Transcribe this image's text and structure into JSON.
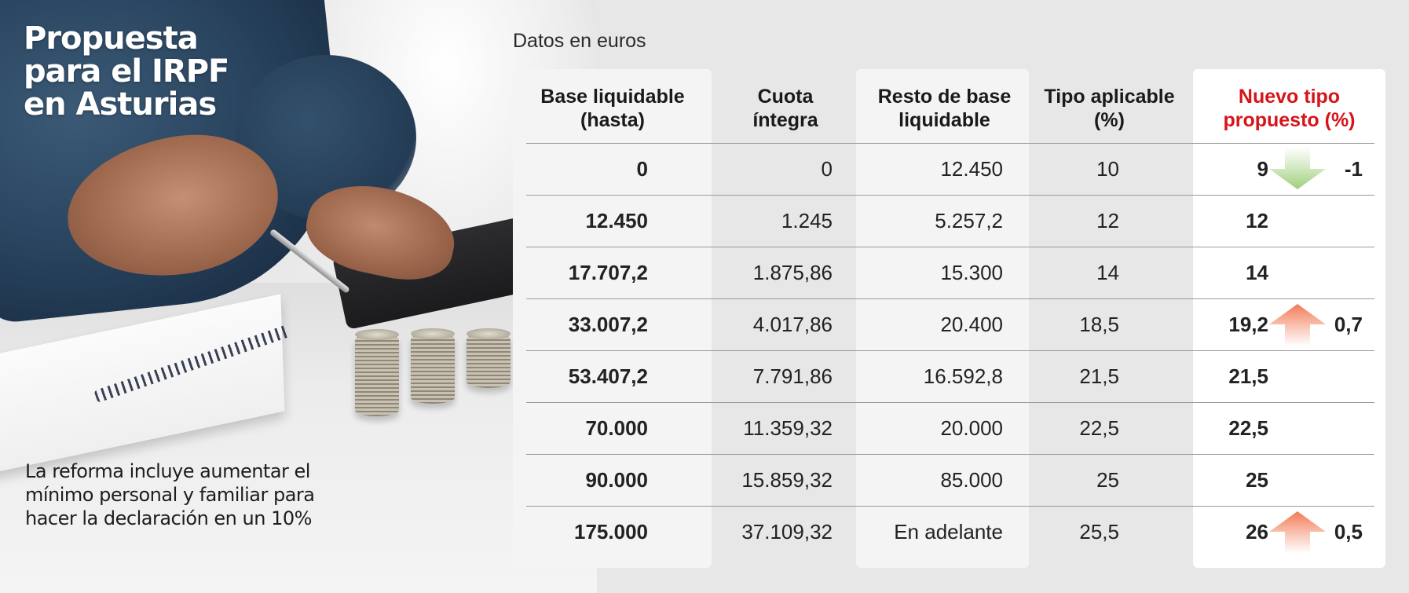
{
  "headline": [
    "Propuesta",
    "para el IRPF",
    "en Asturias"
  ],
  "caption": "La reforma incluye aumentar el mínimo personal y familiar para hacer la declaración en un 10%",
  "units_label": "Datos en euros",
  "headers": [
    [
      "Base liquidable",
      "(hasta)"
    ],
    [
      "Cuota",
      "íntegra"
    ],
    [
      "Resto de base",
      "liquidable"
    ],
    [
      "Tipo aplicable",
      "(%)"
    ],
    [
      "Nuevo tipo",
      "propuesto (%)"
    ]
  ],
  "colors": {
    "accent": "#d6141b",
    "arrow_down": "#9fcf7a",
    "arrow_up": "#f27a55"
  },
  "rows": [
    {
      "base": "0",
      "cuota": "0",
      "resto": "12.450",
      "tipo": "10",
      "nuevo": "9",
      "change": "-1",
      "direction": "down"
    },
    {
      "base": "12.450",
      "cuota": "1.245",
      "resto": "5.257,2",
      "tipo": "12",
      "nuevo": "12",
      "change": "",
      "direction": ""
    },
    {
      "base": "17.707,2",
      "cuota": "1.875,86",
      "resto": "15.300",
      "tipo": "14",
      "nuevo": "14",
      "change": "",
      "direction": ""
    },
    {
      "base": "33.007,2",
      "cuota": "4.017,86",
      "resto": "20.400",
      "tipo": "18,5",
      "nuevo": "19,2",
      "change": "0,7",
      "direction": "up"
    },
    {
      "base": "53.407,2",
      "cuota": "7.791,86",
      "resto": "16.592,8",
      "tipo": "21,5",
      "nuevo": "21,5",
      "change": "",
      "direction": ""
    },
    {
      "base": "70.000",
      "cuota": "11.359,32",
      "resto": "20.000",
      "tipo": "22,5",
      "nuevo": "22,5",
      "change": "",
      "direction": ""
    },
    {
      "base": "90.000",
      "cuota": "15.859,32",
      "resto": "85.000",
      "tipo": "25",
      "nuevo": "25",
      "change": "",
      "direction": ""
    },
    {
      "base": "175.000",
      "cuota": "37.109,32",
      "resto": "En adelante",
      "tipo": "25,5",
      "nuevo": "26",
      "change": "0,5",
      "direction": "up"
    }
  ]
}
